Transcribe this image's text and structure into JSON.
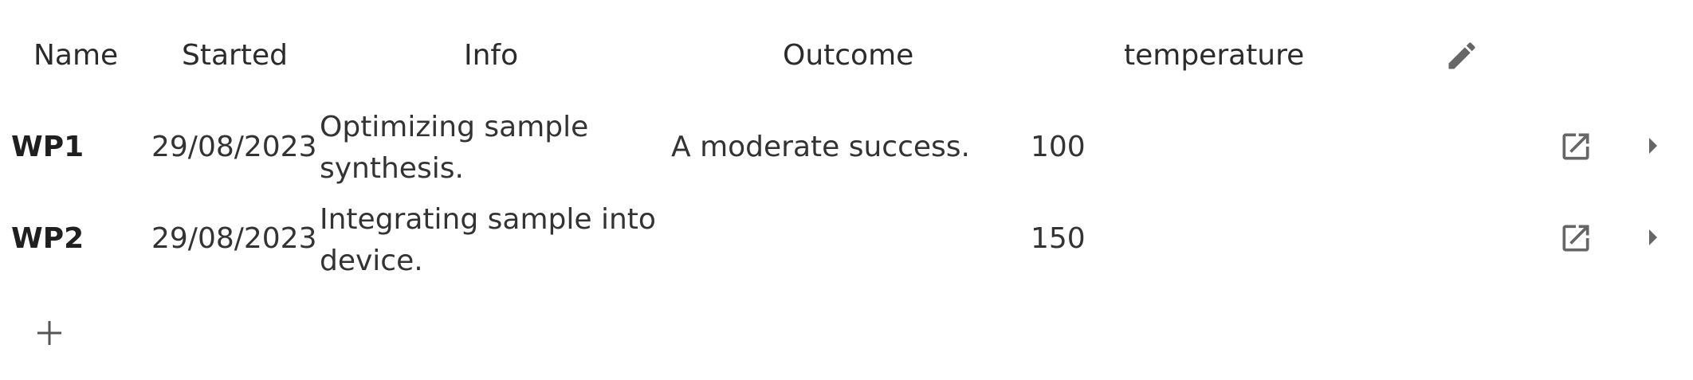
{
  "table": {
    "columns": [
      "Name",
      "Started",
      "Info",
      "Outcome",
      "temperature"
    ],
    "rows": [
      {
        "name": "WP1",
        "started": "29/08/2023",
        "info": "Optimizing sample synthesis.",
        "outcome": "A moderate success.",
        "temperature": "100"
      },
      {
        "name": "WP2",
        "started": "29/08/2023",
        "info": "Integrating sample into device.",
        "outcome": "",
        "temperature": "150"
      }
    ]
  },
  "icons": {
    "edit_columns": "pencil-icon",
    "open_row": "open-in-new-icon",
    "expand_row": "caret-right-icon",
    "add_row": "plus-icon"
  },
  "colors": {
    "icon": "#666666",
    "text": "#333333"
  }
}
